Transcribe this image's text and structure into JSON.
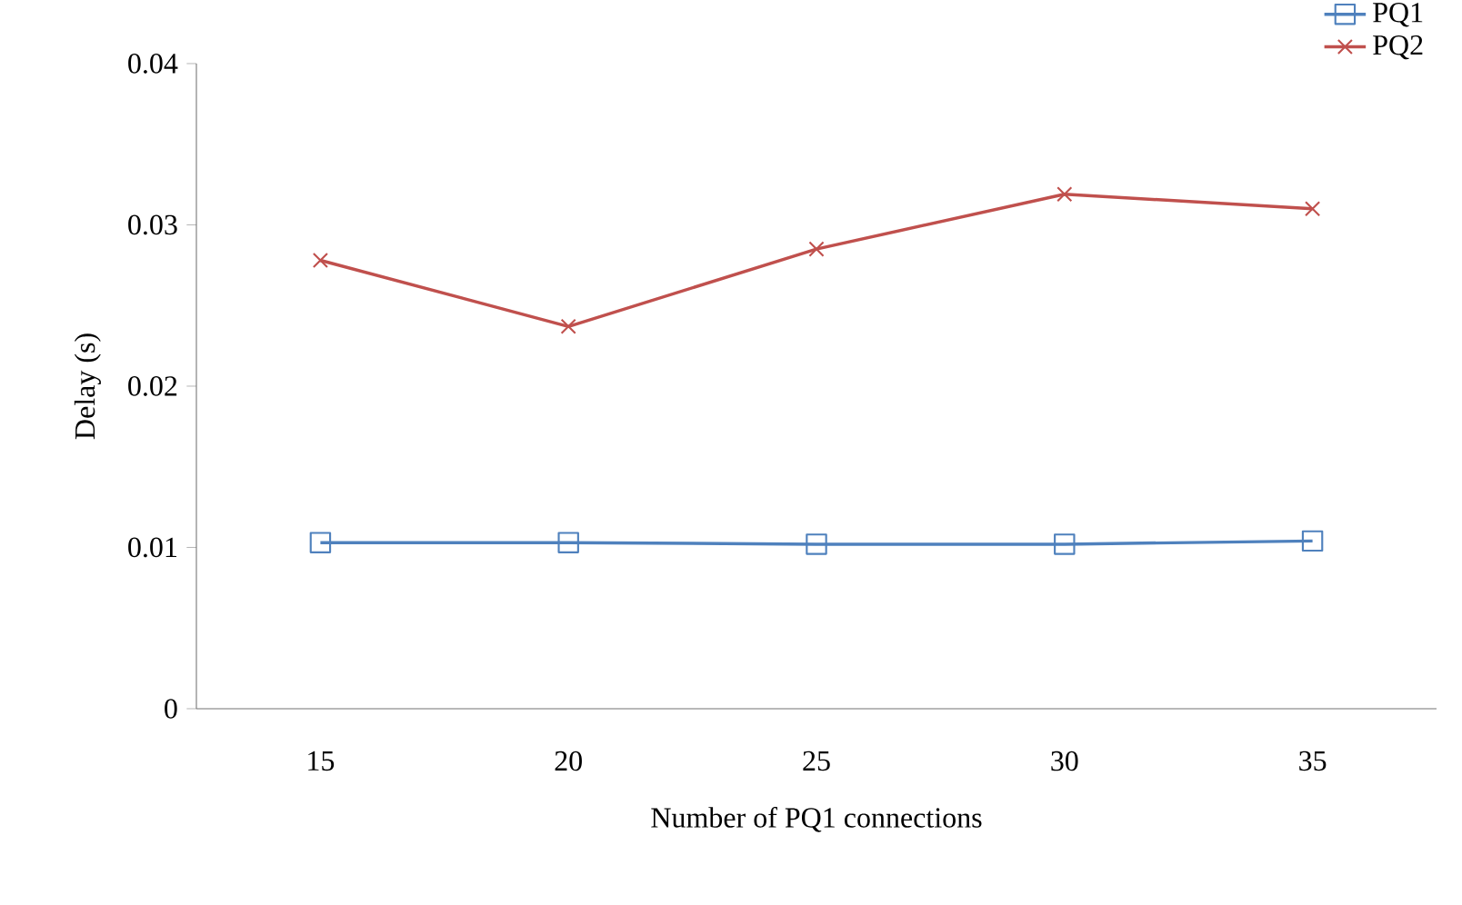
{
  "chart_data": {
    "type": "line",
    "xlabel": "Number of PQ1 connections",
    "ylabel": "Delay (s)",
    "categories": [
      "15",
      "20",
      "25",
      "30",
      "35"
    ],
    "series": [
      {
        "name": "PQ1",
        "color": "#4f81bd",
        "marker": "square",
        "values": [
          0.0103,
          0.0103,
          0.0102,
          0.0102,
          0.0104
        ]
      },
      {
        "name": "PQ2",
        "color": "#c0504d",
        "marker": "cross",
        "values": [
          0.0278,
          0.0237,
          0.0285,
          0.0319,
          0.031
        ]
      }
    ],
    "ylim": [
      0,
      0.04
    ],
    "yticks": [
      0,
      0.01,
      0.02,
      0.03,
      0.04
    ],
    "legend": "top right",
    "grid": false
  }
}
